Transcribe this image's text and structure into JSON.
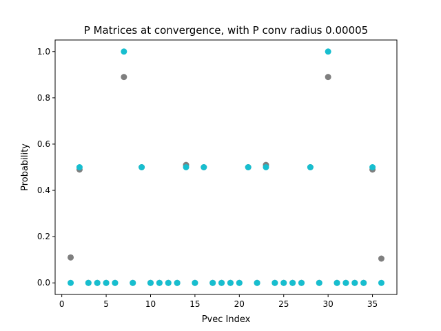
{
  "chart_data": {
    "type": "scatter",
    "title": "P Matrices at convergence, with P conv radius 0.00005",
    "xlabel": "Pvec Index",
    "ylabel": "Probability",
    "xlim": [
      -0.75,
      37.75
    ],
    "ylim": [
      -0.05,
      1.05
    ],
    "xticks": [
      0,
      5,
      10,
      15,
      20,
      25,
      30,
      35
    ],
    "yticks": [
      0.0,
      0.2,
      0.4,
      0.6,
      0.8,
      1.0
    ],
    "xtick_labels": [
      "0",
      "5",
      "10",
      "15",
      "20",
      "25",
      "30",
      "35"
    ],
    "ytick_labels": [
      "0.0",
      "0.2",
      "0.4",
      "0.6",
      "0.8",
      "1.0"
    ],
    "grid": false,
    "legend": "none",
    "series": [
      {
        "color": "#7f7f7f",
        "x": [
          1,
          2,
          3,
          4,
          5,
          6,
          7,
          8,
          9,
          10,
          11,
          12,
          13,
          14,
          15,
          16,
          17,
          18,
          19,
          20,
          21,
          22,
          23,
          24,
          25,
          26,
          27,
          28,
          29,
          30,
          31,
          32,
          33,
          34,
          35,
          36
        ],
        "values": [
          0.11,
          0.49,
          0,
          0,
          0,
          0,
          0.89,
          0,
          0.5,
          0,
          0,
          0,
          0,
          0.51,
          0,
          0.5,
          0,
          0,
          0,
          0,
          0.5,
          0,
          0.51,
          0,
          0,
          0,
          0,
          0.5,
          0,
          0.89,
          0,
          0,
          0,
          0,
          0.49,
          0.105
        ]
      },
      {
        "color": "#17becf",
        "x": [
          1,
          2,
          3,
          4,
          5,
          6,
          7,
          8,
          9,
          10,
          11,
          12,
          13,
          14,
          15,
          16,
          17,
          18,
          19,
          20,
          21,
          22,
          23,
          24,
          25,
          26,
          27,
          28,
          29,
          30,
          31,
          32,
          33,
          34,
          35,
          36
        ],
        "values": [
          0,
          0.5,
          0,
          0,
          0,
          0,
          1.0,
          0,
          0.5,
          0,
          0,
          0,
          0,
          0.5,
          0,
          0.5,
          0,
          0,
          0,
          0,
          0.5,
          0,
          0.5,
          0,
          0,
          0,
          0,
          0.5,
          0,
          1.0,
          0,
          0,
          0,
          0,
          0.5,
          0
        ]
      }
    ]
  }
}
